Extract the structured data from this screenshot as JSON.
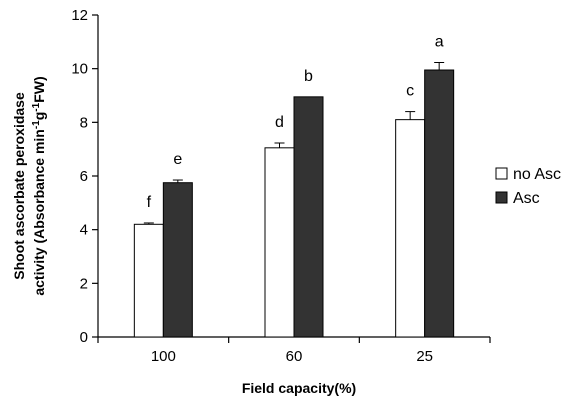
{
  "chart_data": {
    "type": "bar",
    "title": "",
    "xlabel": "Field capacity(%)",
    "ylabel": {
      "line1": "Shoot ascorbate peroxidase",
      "line2_prefix": "activity (Absorbance min",
      "sup1": "-1",
      "line2_mid": "g",
      "sup2": "-1",
      "line2_suffix": "FW)"
    },
    "categories": [
      "100",
      "60",
      "25"
    ],
    "ylim": [
      0,
      12
    ],
    "yticks": [
      0,
      2,
      4,
      6,
      8,
      10,
      12
    ],
    "grid": false,
    "legend_position": "right",
    "series": [
      {
        "name": "no Asc",
        "color": "#ffffff",
        "values": [
          4.2,
          7.05,
          8.1
        ],
        "errors": [
          0.05,
          0.18,
          0.3
        ],
        "letters": [
          "f",
          "d",
          "c"
        ]
      },
      {
        "name": "Asc",
        "color": "#333333",
        "values": [
          5.75,
          8.95,
          9.95
        ],
        "errors": [
          0.1,
          0.0,
          0.28
        ],
        "letters": [
          "e",
          "b",
          "a"
        ]
      }
    ]
  }
}
